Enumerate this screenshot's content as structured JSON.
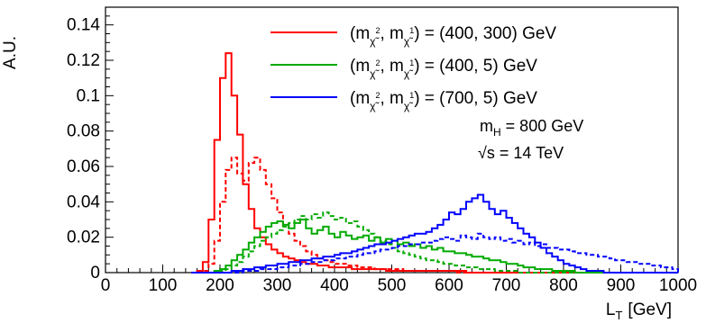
{
  "chart_data": {
    "type": "line",
    "title": "",
    "xlabel": "L_T [GeV]",
    "xlabel_main": "L",
    "xlabel_sub": "T",
    "xlabel_unit": "[GeV]",
    "ylabel": "A.U.",
    "xlim": [
      0,
      1000
    ],
    "ylim": [
      0,
      0.15
    ],
    "x_ticks": [
      0,
      100,
      200,
      300,
      400,
      500,
      600,
      700,
      800,
      900,
      1000
    ],
    "y_ticks": [
      0,
      0.02,
      0.04,
      0.06,
      0.08,
      0.1,
      0.12,
      0.14
    ],
    "y_tick_labels": [
      "0",
      "0.02",
      "0.04",
      "0.06",
      "0.08",
      "0.1",
      "0.12",
      "0.14"
    ],
    "grid": false,
    "legend_position": "top-right",
    "bin_width": 10,
    "x": [
      150,
      160,
      170,
      180,
      190,
      200,
      210,
      220,
      230,
      240,
      250,
      260,
      270,
      280,
      290,
      300,
      310,
      320,
      330,
      340,
      350,
      360,
      370,
      380,
      390,
      400,
      410,
      420,
      430,
      440,
      450,
      460,
      470,
      480,
      490,
      500,
      510,
      520,
      530,
      540,
      550,
      560,
      570,
      580,
      590,
      600,
      610,
      620,
      630,
      640,
      650,
      660,
      670,
      680,
      690,
      700,
      710,
      720,
      730,
      740,
      750,
      760,
      770,
      780,
      790,
      800,
      810,
      820,
      830,
      840,
      850,
      860,
      870,
      880,
      890,
      900,
      910,
      920,
      930,
      940,
      950,
      960,
      970,
      980,
      990
    ],
    "series": [
      {
        "name": "(m_χ2, m_χ1) = (400, 300) GeV",
        "legend_prefix": "(m",
        "legend_mid": ", m",
        "legend_suffix": ") = (400, 300) GeV",
        "legend_sub1": "χ̃",
        "legend_sup1": "2",
        "legend_sub2": "χ̃",
        "legend_sup2": "1",
        "color": "#ff0000",
        "style": "solid",
        "values": [
          0,
          0.001,
          0.006,
          0.03,
          0.075,
          0.11,
          0.124,
          0.1,
          0.078,
          0.05,
          0.036,
          0.025,
          0.02,
          0.016,
          0.013,
          0.011,
          0.009,
          0.008,
          0.007,
          0.006,
          0.005,
          0.005,
          0.004,
          0.004,
          0.003,
          0.003,
          0.003,
          0.003,
          0.002,
          0.002,
          0.002,
          0.002,
          0.002,
          0.002,
          0.001,
          0.001,
          0.001,
          0.001,
          0.001,
          0.001,
          0.001,
          0.001,
          0.001,
          0.001,
          0.001,
          0.001,
          0.001,
          0.001,
          0,
          0,
          0,
          0,
          0,
          0,
          0,
          0,
          0,
          0,
          0,
          0,
          0,
          0,
          0,
          0,
          0,
          0,
          0,
          0,
          0,
          0,
          0,
          0,
          0,
          0,
          0,
          0,
          0,
          0,
          0,
          0,
          0,
          0,
          0,
          0,
          0
        ]
      },
      {
        "name": "(m_χ2, m_χ1) = (400, 300) GeV dashed",
        "color": "#ff0000",
        "style": "dashed",
        "values": [
          0,
          0,
          0.001,
          0.005,
          0.018,
          0.04,
          0.058,
          0.065,
          0.056,
          0.052,
          0.062,
          0.065,
          0.058,
          0.05,
          0.042,
          0.034,
          0.027,
          0.022,
          0.018,
          0.015,
          0.012,
          0.01,
          0.008,
          0.007,
          0.006,
          0.005,
          0.005,
          0.004,
          0.004,
          0.003,
          0.003,
          0.003,
          0.002,
          0.002,
          0.002,
          0.002,
          0.002,
          0.001,
          0.001,
          0.001,
          0.001,
          0.001,
          0.001,
          0.001,
          0.001,
          0.001,
          0,
          0,
          0,
          0,
          0,
          0,
          0,
          0,
          0,
          0,
          0,
          0,
          0,
          0,
          0,
          0,
          0,
          0,
          0,
          0,
          0,
          0,
          0,
          0,
          0,
          0,
          0,
          0,
          0,
          0,
          0,
          0,
          0,
          0,
          0,
          0,
          0,
          0,
          0
        ]
      },
      {
        "name": "(m_χ2, m_χ1) = (400, 5) GeV",
        "legend_prefix": "(m",
        "legend_mid": ", m",
        "legend_suffix": ") = (400, 5) GeV",
        "legend_sub1": "χ̃",
        "legend_sup1": "2",
        "legend_sub2": "χ̃",
        "legend_sup2": "1",
        "color": "#00aa00",
        "style": "solid",
        "values": [
          0,
          0,
          0,
          0,
          0.001,
          0.002,
          0.004,
          0.007,
          0.01,
          0.013,
          0.017,
          0.02,
          0.023,
          0.026,
          0.028,
          0.029,
          0.027,
          0.025,
          0.028,
          0.03,
          0.025,
          0.022,
          0.024,
          0.026,
          0.022,
          0.02,
          0.023,
          0.021,
          0.019,
          0.02,
          0.021,
          0.018,
          0.02,
          0.017,
          0.019,
          0.018,
          0.016,
          0.017,
          0.015,
          0.016,
          0.014,
          0.015,
          0.013,
          0.014,
          0.012,
          0.012,
          0.011,
          0.011,
          0.01,
          0.009,
          0.009,
          0.008,
          0.007,
          0.007,
          0.006,
          0.005,
          0.005,
          0.004,
          0.003,
          0.003,
          0.002,
          0.002,
          0.002,
          0.001,
          0.001,
          0.001,
          0.001,
          0,
          0,
          0,
          0,
          0,
          0,
          0,
          0,
          0,
          0,
          0,
          0,
          0,
          0,
          0,
          0,
          0,
          0
        ]
      },
      {
        "name": "(m_χ2, m_χ1) = (400, 5) GeV dashed",
        "color": "#00aa00",
        "style": "dashed",
        "values": [
          0,
          0,
          0,
          0,
          0,
          0.001,
          0.002,
          0.004,
          0.006,
          0.009,
          0.012,
          0.015,
          0.018,
          0.02,
          0.022,
          0.024,
          0.026,
          0.028,
          0.03,
          0.032,
          0.03,
          0.033,
          0.031,
          0.034,
          0.032,
          0.03,
          0.031,
          0.028,
          0.029,
          0.026,
          0.024,
          0.022,
          0.02,
          0.018,
          0.016,
          0.014,
          0.012,
          0.011,
          0.01,
          0.009,
          0.008,
          0.007,
          0.007,
          0.006,
          0.005,
          0.005,
          0.004,
          0.004,
          0.003,
          0.003,
          0.002,
          0.002,
          0.002,
          0.001,
          0.001,
          0.001,
          0.001,
          0,
          0,
          0,
          0,
          0,
          0,
          0,
          0,
          0,
          0,
          0,
          0,
          0,
          0,
          0,
          0,
          0,
          0,
          0,
          0,
          0,
          0,
          0,
          0,
          0,
          0,
          0,
          0
        ]
      },
      {
        "name": "(m_χ2, m_χ1) = (700, 5) GeV",
        "legend_prefix": "(m",
        "legend_mid": ", m",
        "legend_suffix": ") = (700, 5) GeV",
        "legend_sub1": "χ̃",
        "legend_sup1": "2",
        "legend_sub2": "χ̃",
        "legend_sup2": "1",
        "color": "#0000ff",
        "style": "solid",
        "values": [
          0,
          0,
          0,
          0,
          0,
          0,
          0,
          0.001,
          0.001,
          0.002,
          0.002,
          0.003,
          0.003,
          0.004,
          0.004,
          0.005,
          0.005,
          0.006,
          0.006,
          0.007,
          0.007,
          0.008,
          0.008,
          0.009,
          0.009,
          0.01,
          0.011,
          0.011,
          0.012,
          0.013,
          0.014,
          0.015,
          0.016,
          0.016,
          0.017,
          0.018,
          0.019,
          0.02,
          0.021,
          0.022,
          0.022,
          0.023,
          0.025,
          0.027,
          0.03,
          0.034,
          0.033,
          0.036,
          0.04,
          0.042,
          0.044,
          0.04,
          0.036,
          0.033,
          0.035,
          0.031,
          0.028,
          0.025,
          0.022,
          0.02,
          0.017,
          0.014,
          0.011,
          0.009,
          0.007,
          0.005,
          0.004,
          0.003,
          0.002,
          0.001,
          0.001,
          0.001,
          0,
          0,
          0,
          0,
          0,
          0,
          0,
          0,
          0,
          0,
          0,
          0,
          0
        ]
      },
      {
        "name": "(m_χ2, m_χ1) = (700, 5) GeV dashed",
        "color": "#0000ff",
        "style": "dashed",
        "values": [
          0,
          0,
          0,
          0,
          0,
          0,
          0,
          0,
          0,
          0.001,
          0.001,
          0.001,
          0.002,
          0.002,
          0.002,
          0.003,
          0.003,
          0.004,
          0.004,
          0.005,
          0.005,
          0.006,
          0.006,
          0.007,
          0.007,
          0.008,
          0.008,
          0.009,
          0.009,
          0.01,
          0.011,
          0.011,
          0.012,
          0.013,
          0.013,
          0.014,
          0.015,
          0.015,
          0.016,
          0.016,
          0.017,
          0.017,
          0.018,
          0.019,
          0.02,
          0.019,
          0.018,
          0.021,
          0.02,
          0.019,
          0.022,
          0.02,
          0.019,
          0.02,
          0.018,
          0.019,
          0.017,
          0.018,
          0.016,
          0.017,
          0.015,
          0.016,
          0.014,
          0.014,
          0.013,
          0.013,
          0.012,
          0.011,
          0.011,
          0.01,
          0.01,
          0.009,
          0.009,
          0.008,
          0.007,
          0.007,
          0.006,
          0.006,
          0.005,
          0.005,
          0.004,
          0.004,
          0.003,
          0.003,
          0.002
        ]
      }
    ],
    "annotations": [
      {
        "main": "m",
        "sub": "H",
        "rest": " = 800 GeV"
      },
      {
        "main": "s",
        "prefix": "√",
        "rest": " = 14 TeV"
      }
    ]
  }
}
